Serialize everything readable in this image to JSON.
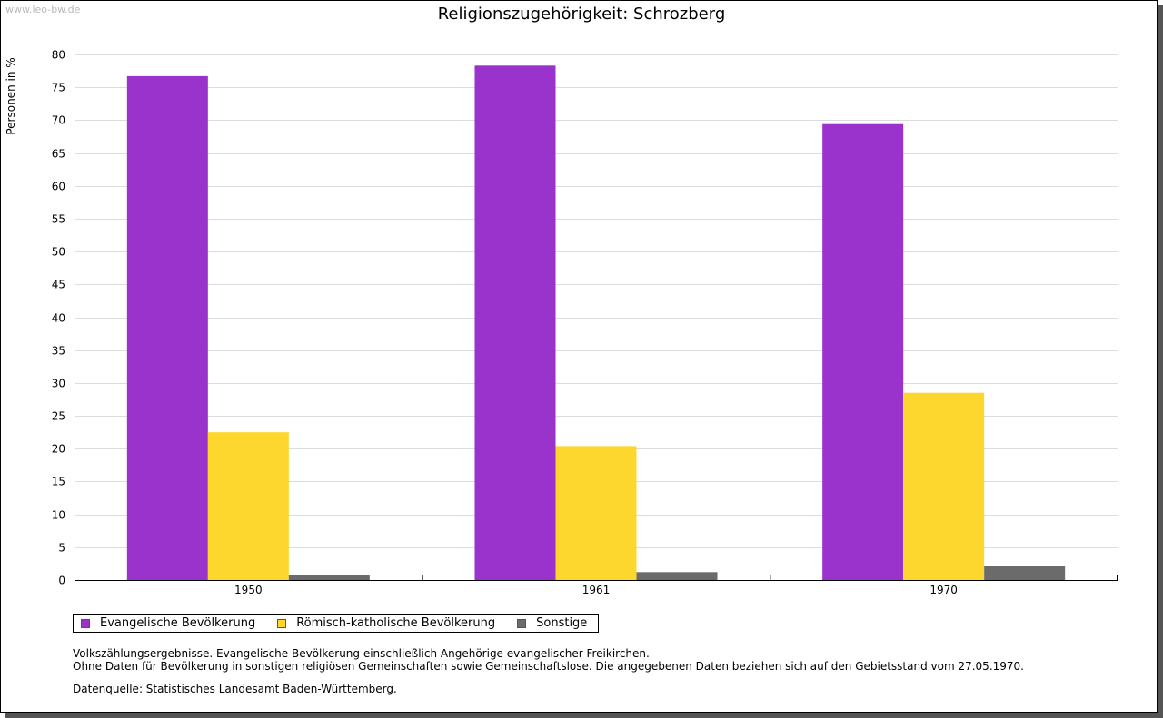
{
  "watermark": "www.leo-bw.de",
  "chart_data": {
    "type": "bar",
    "title": "Religionszugehörigkeit: Schrozberg",
    "ylabel": "Personen in %",
    "xlabel": "",
    "ylim": [
      0,
      80
    ],
    "yticks": [
      0,
      5,
      10,
      15,
      20,
      25,
      30,
      35,
      40,
      45,
      50,
      55,
      60,
      65,
      70,
      75,
      80
    ],
    "grid": true,
    "legend_position": "bottom-left",
    "categories": [
      "1950",
      "1961",
      "1970"
    ],
    "series": [
      {
        "name": "Evangelische Bevölkerung",
        "color": "#9933cc",
        "values": [
          76.7,
          78.3,
          69.4
        ]
      },
      {
        "name": "Römisch-katholische Bevölkerung",
        "color": "#fdd72e",
        "values": [
          22.5,
          20.4,
          28.5
        ]
      },
      {
        "name": "Sonstige",
        "color": "#6b6b6b",
        "values": [
          0.8,
          1.2,
          2.1
        ]
      }
    ]
  },
  "notes": {
    "line1": "Volkszählungsergebnisse. Evangelische Bevölkerung einschließlich Angehörige evangelischer Freikirchen.",
    "line2": "Ohne Daten für Bevölkerung in sonstigen religiösen Gemeinschaften sowie Gemeinschaftslose. Die angegebenen Daten beziehen sich auf den Gebietsstand vom 27.05.1970.",
    "source": "Datenquelle: Statistisches Landesamt Baden-Württemberg."
  }
}
